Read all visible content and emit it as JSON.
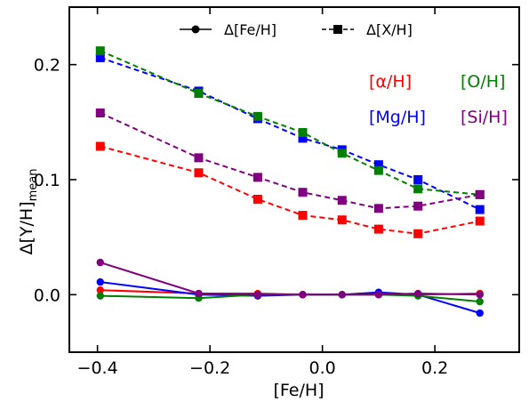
{
  "chart_data": {
    "type": "line",
    "xlabel": "[Fe/H]",
    "ylabel_main": "Δ[Y/H]",
    "ylabel_sub": "mean",
    "xlim": [
      -0.45,
      0.35
    ],
    "ylim": [
      -0.05,
      0.25
    ],
    "xticks": [
      -0.4,
      -0.2,
      0.0,
      0.2
    ],
    "xtick_labels": [
      "−0.4",
      "−0.2",
      "0.0",
      "0.2"
    ],
    "yticks": [
      0.0,
      0.1,
      0.2
    ],
    "ytick_labels": [
      "0.0",
      "0.1",
      "0.2"
    ],
    "grid": false,
    "legend_position": "top-center",
    "legend": [
      {
        "label": "Δ[Fe/H]",
        "marker": "circle",
        "linestyle": "solid"
      },
      {
        "label": "Δ[X/H]",
        "marker": "square",
        "linestyle": "dashed"
      }
    ],
    "x": [
      -0.395,
      -0.22,
      -0.115,
      -0.035,
      0.035,
      0.1,
      0.17,
      0.28
    ],
    "series": [
      {
        "name": "[α/H]",
        "element": "alpha",
        "color": "#ff0000",
        "kind": "X",
        "values": [
          0.129,
          0.106,
          0.083,
          0.069,
          0.065,
          0.057,
          0.053,
          0.064
        ]
      },
      {
        "name": "[Mg/H]",
        "element": "Mg",
        "color": "#0000ff",
        "kind": "X",
        "values": [
          0.206,
          0.177,
          0.153,
          0.136,
          0.126,
          0.113,
          0.1,
          0.074
        ]
      },
      {
        "name": "[O/H]",
        "element": "O",
        "color": "#008000",
        "kind": "X",
        "values": [
          0.212,
          0.175,
          0.155,
          0.141,
          0.123,
          0.108,
          0.092,
          0.087
        ]
      },
      {
        "name": "[Si/H]",
        "element": "Si",
        "color": "#800080",
        "kind": "X",
        "values": [
          0.158,
          0.119,
          0.102,
          0.089,
          0.082,
          0.075,
          0.077,
          0.087
        ]
      },
      {
        "element": "alpha",
        "color": "#ff0000",
        "kind": "Fe",
        "values": [
          0.004,
          0.001,
          0.001,
          0.0,
          0.0,
          0.0,
          0.0,
          0.001
        ]
      },
      {
        "element": "Mg",
        "color": "#0000ff",
        "kind": "Fe",
        "values": [
          0.011,
          0.0,
          -0.001,
          0.0,
          0.0,
          0.002,
          0.0,
          -0.016
        ]
      },
      {
        "element": "O",
        "color": "#008000",
        "kind": "Fe",
        "values": [
          -0.001,
          -0.003,
          0.0,
          0.0,
          0.0,
          0.0,
          -0.001,
          -0.006
        ]
      },
      {
        "element": "Si",
        "color": "#800080",
        "kind": "Fe",
        "values": [
          0.028,
          0.001,
          0.0,
          0.0,
          0.0,
          0.0,
          0.001,
          0.0
        ]
      }
    ],
    "annotations": [
      {
        "text": "[α/H]",
        "color": "#ff0000"
      },
      {
        "text": "[O/H]",
        "color": "#008000"
      },
      {
        "text": "[Mg/H]",
        "color": "#0000ff"
      },
      {
        "text": "[Si/H]",
        "color": "#800080"
      }
    ]
  }
}
